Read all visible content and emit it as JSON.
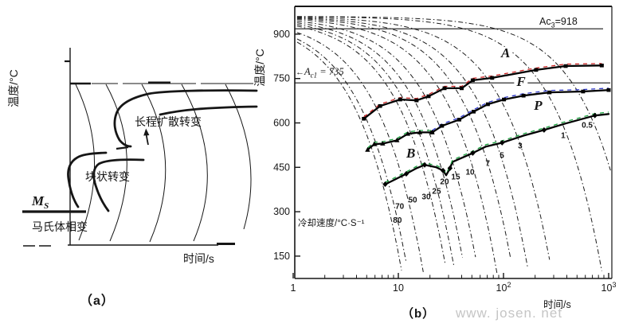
{
  "panel_a": {
    "caption": "（a）",
    "y_axis_label": "温度/°C",
    "x_axis_label": "时间/s",
    "labels": {
      "diffusion": "长程扩散转变",
      "massive": "块状转变",
      "martensite": "马氏体相变",
      "ms_base": "M",
      "ms_sub": "S"
    }
  },
  "panel_b": {
    "caption": "（b）",
    "y_axis_label": "温度/°C",
    "x_axis_label": "时间/s",
    "cooling_rate_label": "冷却速度/°C·S⁻¹",
    "ac3": {
      "base": "Ac",
      "sub": "3",
      "value": "=918"
    },
    "ac1": {
      "arrow": "←",
      "base": "A",
      "sub": "c1",
      "value": " = 735"
    },
    "watermark": "www. josen. net"
  },
  "chart_data": {
    "type": "line",
    "xlabel": "时间/s",
    "ylabel": "温度/°C",
    "x_scale": "log",
    "xlim": [
      1,
      1000
    ],
    "ylim": [
      50,
      985
    ],
    "y_ticks": [
      900,
      750,
      600,
      450,
      300,
      150
    ],
    "x_ticks": [
      {
        "base": "1",
        "sup": ""
      },
      {
        "base": "10",
        "sup": ""
      },
      {
        "base": "10",
        "sup": "2"
      },
      {
        "base": "10",
        "sup": "3"
      }
    ],
    "grid": false,
    "reference_lines": [
      {
        "name": "Ac3",
        "T": 918,
        "label": "Ac3=918"
      },
      {
        "name": "Ac1",
        "T": 735,
        "label": "Ac1=735"
      }
    ],
    "initial_temperature": 960,
    "cooling_rates": [
      {
        "v": 80,
        "label_t": 9.8,
        "label_T": 263
      },
      {
        "v": 70,
        "label_t": 10.3,
        "label_T": 309
      },
      {
        "v": 50,
        "label_t": 13.7,
        "label_T": 331
      },
      {
        "v": 30,
        "label_t": 18.4,
        "label_T": 342
      },
      {
        "v": 25,
        "label_t": 23.1,
        "label_T": 361
      },
      {
        "v": 20,
        "label_t": 27.5,
        "label_T": 393
      },
      {
        "v": 15,
        "label_t": 35.1,
        "label_T": 409
      },
      {
        "v": 10,
        "label_t": 48.1,
        "label_T": 425
      },
      {
        "v": 7,
        "label_t": 70.8,
        "label_T": 455
      },
      {
        "v": 5,
        "label_t": 96.6,
        "label_T": 482
      },
      {
        "v": 3,
        "label_t": 144,
        "label_T": 514
      },
      {
        "v": 1,
        "label_t": 369,
        "label_T": 549
      },
      {
        "v": 0.5,
        "label_t": 625,
        "label_T": 584
      }
    ],
    "series": [
      {
        "name": "ferrite-start",
        "overlay_color": "#cc2222",
        "marker": "square",
        "marker_every": 1,
        "points": [
          [
            4.7,
            614
          ],
          [
            6.7,
            657
          ],
          [
            10.4,
            679
          ],
          [
            14.9,
            676
          ],
          [
            19.4,
            690
          ],
          [
            27.5,
            717
          ],
          [
            40,
            717
          ],
          [
            51,
            744
          ],
          [
            78,
            752
          ],
          [
            204,
            779
          ],
          [
            390,
            792
          ],
          [
            860,
            794
          ]
        ]
      },
      {
        "name": "pearlite-start",
        "overlay_color": "#2b35c8",
        "marker": "square",
        "marker_every": 1,
        "points": [
          [
            21,
            568
          ],
          [
            26,
            590
          ],
          [
            38,
            611
          ],
          [
            52,
            638
          ],
          [
            71,
            663
          ],
          [
            101,
            679
          ],
          [
            155,
            692
          ],
          [
            274,
            703
          ],
          [
            571,
            706
          ],
          [
            1000,
            711
          ]
        ]
      },
      {
        "name": "bainite-start",
        "overlay_color": "#1ba13f",
        "marker": "triangle",
        "marker_every": 1,
        "points": [
          [
            5.1,
            509
          ],
          [
            5.9,
            528
          ],
          [
            7.1,
            530
          ],
          [
            9.7,
            541
          ],
          [
            12.3,
            563
          ],
          [
            16,
            568
          ],
          [
            21,
            568
          ]
        ]
      },
      {
        "name": "lower-transformation",
        "overlay_color": "#1ba13f",
        "marker": "diamond",
        "marker_every": 2,
        "points": [
          [
            7.5,
            393
          ],
          [
            8.4,
            401
          ],
          [
            11.9,
            428
          ],
          [
            14.9,
            447
          ],
          [
            17.8,
            458
          ],
          [
            23,
            450
          ],
          [
            26.6,
            439
          ],
          [
            28.5,
            423
          ],
          [
            31,
            447
          ],
          [
            32.7,
            468
          ],
          [
            51,
            498
          ],
          [
            68,
            520
          ],
          [
            97,
            533
          ],
          [
            155,
            557
          ],
          [
            243,
            576
          ],
          [
            390,
            598
          ],
          [
            740,
            625
          ],
          [
            1000,
            630
          ]
        ]
      }
    ],
    "region_labels": [
      {
        "text": "A",
        "t": 95,
        "T": 822
      },
      {
        "text": "F",
        "t": 133,
        "T": 725
      },
      {
        "text": "P",
        "t": 195,
        "T": 644
      },
      {
        "text": "B",
        "t": 11.9,
        "T": 483
      }
    ]
  }
}
